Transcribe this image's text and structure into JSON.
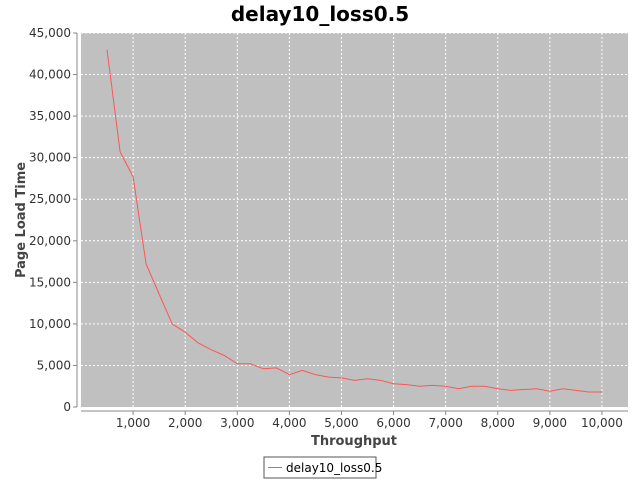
{
  "chart_data": {
    "type": "line",
    "title": "delay10_loss0.5",
    "xlabel": "Throughput",
    "ylabel": "Page Load Time",
    "xlim": [
      0,
      10500
    ],
    "ylim": [
      0,
      45000
    ],
    "xticks": [
      1000,
      2000,
      3000,
      4000,
      5000,
      6000,
      7000,
      8000,
      9000,
      10000
    ],
    "xtick_labels": [
      "1,000",
      "2,000",
      "3,000",
      "4,000",
      "5,000",
      "6,000",
      "7,000",
      "8,000",
      "9,000",
      "10,000"
    ],
    "yticks": [
      0,
      5000,
      10000,
      15000,
      20000,
      25000,
      30000,
      35000,
      40000,
      45000
    ],
    "ytick_labels": [
      "0",
      "5,000",
      "10,000",
      "15,000",
      "20,000",
      "25,000",
      "30,000",
      "35,000",
      "40,000",
      "45,000"
    ],
    "grid": true,
    "legend_position": "bottom-center",
    "background_color": "#c0c0c0",
    "series": [
      {
        "name": "delay10_loss0.5",
        "color": "#ff5555",
        "x": [
          500,
          750,
          1000,
          1250,
          1500,
          1750,
          2000,
          2250,
          2500,
          2750,
          3000,
          3250,
          3500,
          3750,
          4000,
          4250,
          4500,
          4750,
          5000,
          5250,
          5500,
          5750,
          6000,
          6250,
          6500,
          6750,
          7000,
          7250,
          7500,
          7750,
          8000,
          8250,
          8500,
          8750,
          9000,
          9250,
          9500,
          9750,
          10000
        ],
        "y": [
          43000,
          30700,
          27700,
          17200,
          13600,
          10000,
          9000,
          7700,
          6900,
          6200,
          5200,
          5200,
          4600,
          4700,
          3900,
          4400,
          3900,
          3600,
          3500,
          3200,
          3400,
          3200,
          2800,
          2700,
          2500,
          2600,
          2500,
          2200,
          2500,
          2500,
          2200,
          2000,
          2100,
          2200,
          1900,
          2200,
          2000,
          1800,
          1800
        ]
      }
    ]
  }
}
